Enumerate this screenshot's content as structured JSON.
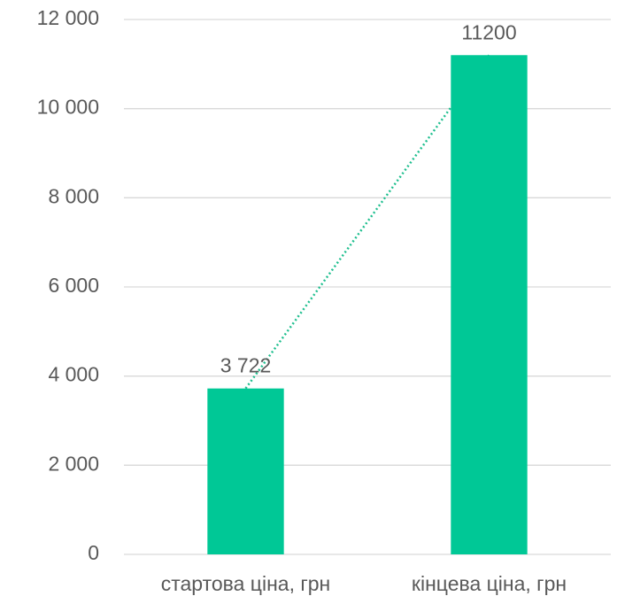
{
  "chart_data": {
    "type": "bar",
    "categories": [
      "стартова ціна, грн",
      "кінцева ціна, грн"
    ],
    "values": [
      3722,
      11200
    ],
    "value_labels": [
      "3 722",
      "11200"
    ],
    "color": "#00c896",
    "ylim": [
      0,
      12000
    ],
    "yticks": [
      0,
      {
        "value": 2000,
        "label": "2 000"
      },
      {
        "value": 4000,
        "label": "4 000"
      },
      {
        "value": 6000,
        "label": "6 000"
      },
      {
        "value": 8000,
        "label": "8 000"
      },
      {
        "value": 10000,
        "label": "10 000"
      },
      {
        "value": 12000,
        "label": "12 000"
      }
    ],
    "grid": true
  }
}
